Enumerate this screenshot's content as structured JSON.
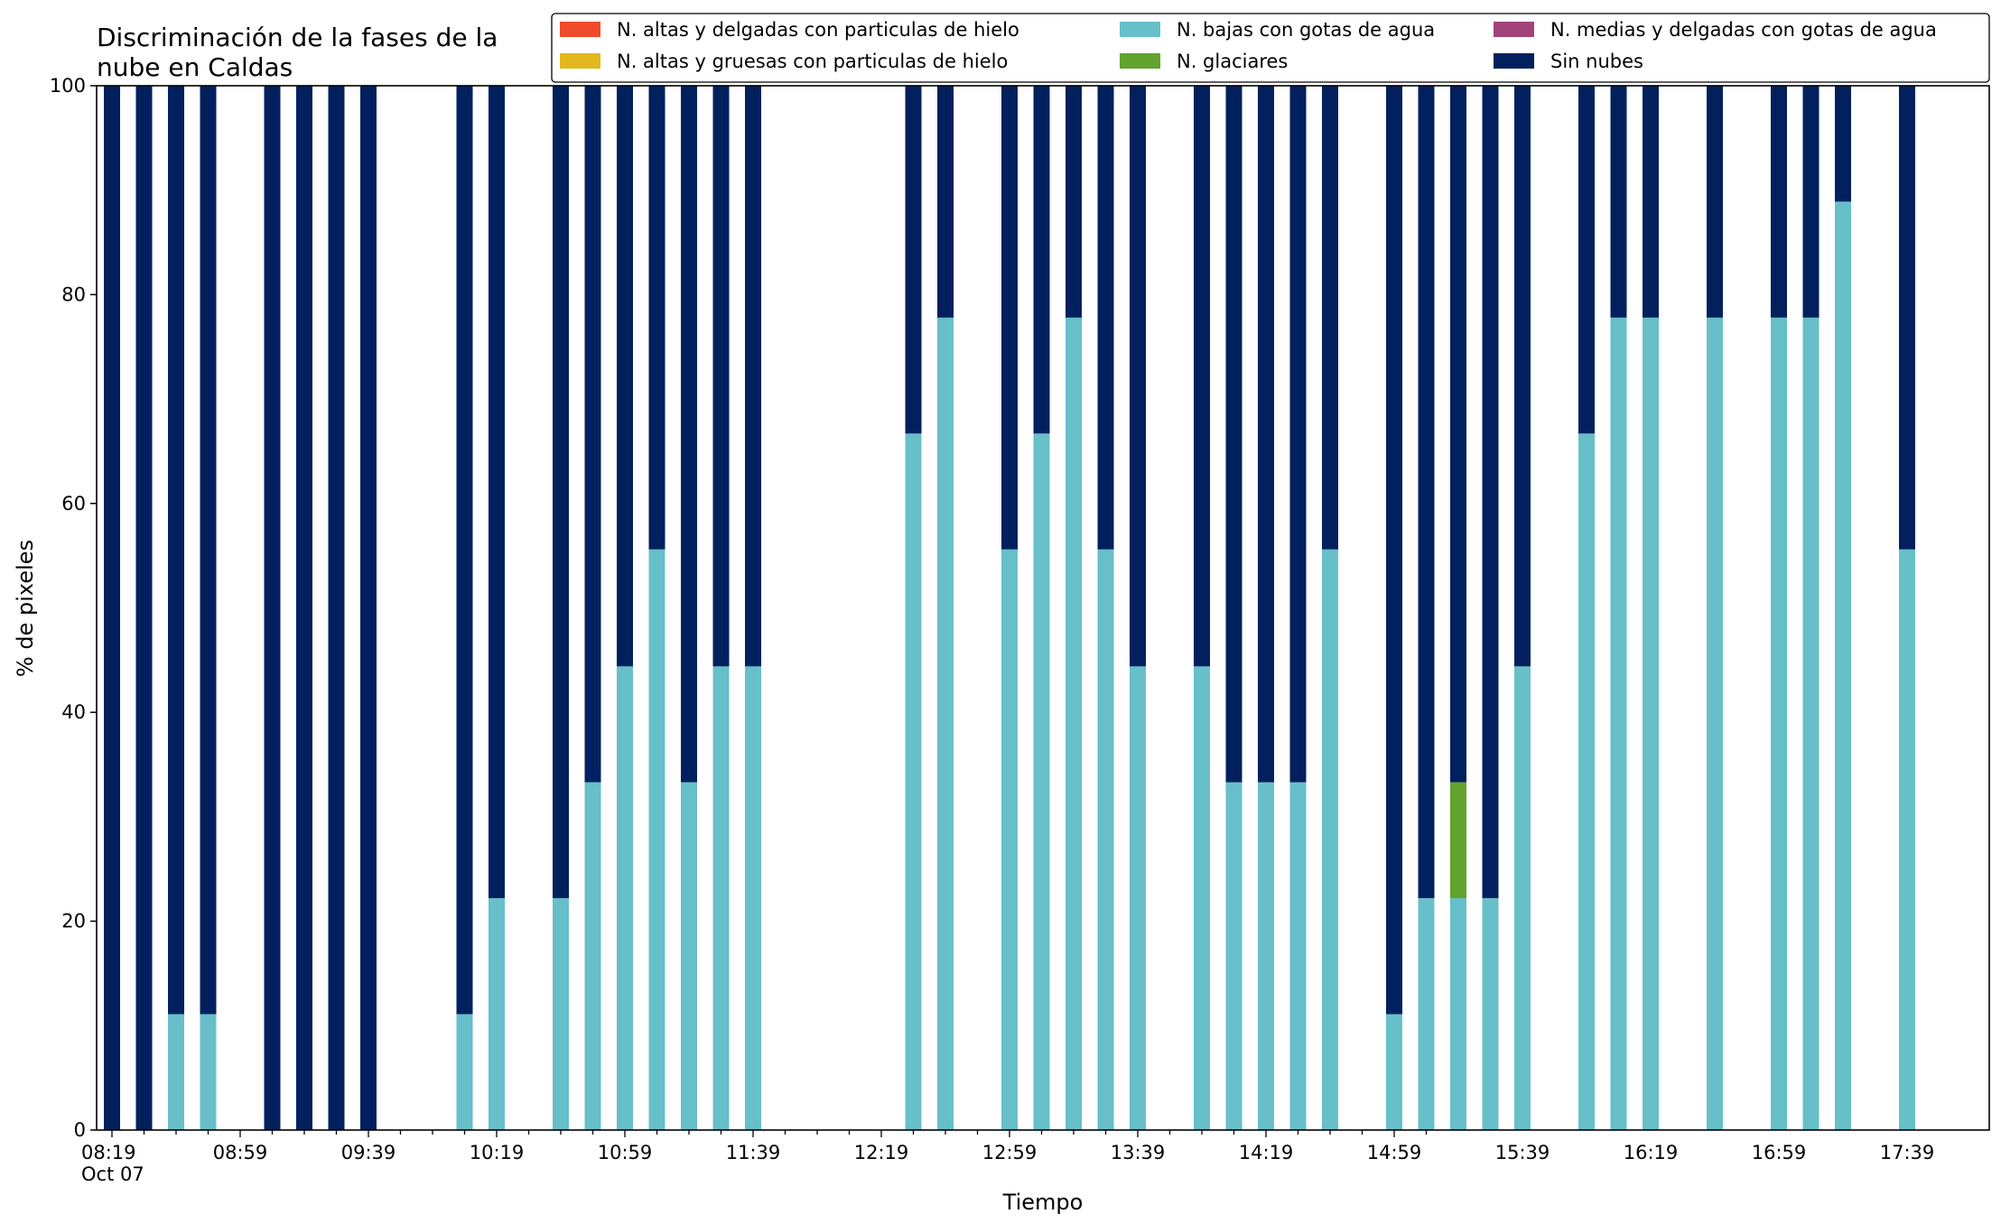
{
  "chart_data": {
    "type": "bar",
    "stacked": true,
    "title": "Discriminación de la fases de la nube en Caldas",
    "title_lines": [
      "Discriminación de la fases de la",
      "nube en Caldas"
    ],
    "xlabel": "Tiempo",
    "ylabel": "% de pixeles",
    "ylim": [
      0,
      100
    ],
    "yticks": [
      "0",
      "20",
      "40",
      "60",
      "80",
      "100"
    ],
    "xticks": [
      "08:19",
      "08:59",
      "09:39",
      "10:19",
      "10:59",
      "11:39",
      "12:19",
      "12:59",
      "13:39",
      "14:19",
      "14:59",
      "15:39",
      "16:19",
      "16:59",
      "17:39"
    ],
    "x_date_label": "Oct 07",
    "grid": false,
    "legend_position": "top-right",
    "categories": [
      "08:19",
      "08:29",
      "08:39",
      "08:49",
      "09:09",
      "09:19",
      "09:29",
      "09:39",
      "10:09",
      "10:19",
      "10:39",
      "10:49",
      "10:59",
      "11:09",
      "11:19",
      "11:29",
      "11:39",
      "12:29",
      "12:39",
      "12:59",
      "13:09",
      "13:19",
      "13:29",
      "13:39",
      "13:59",
      "14:09",
      "14:19",
      "14:29",
      "14:39",
      "14:59",
      "15:09",
      "15:19",
      "15:29",
      "15:39",
      "15:59",
      "16:09",
      "16:19",
      "16:39",
      "16:59",
      "17:09",
      "17:19",
      "17:39"
    ],
    "series": [
      {
        "name": "N. altas y delgadas con particulas de hielo",
        "color": "#ee4c2c",
        "values": [
          0,
          0,
          0,
          0,
          0,
          0,
          0,
          0,
          0,
          0,
          0,
          0,
          0,
          0,
          0,
          0,
          0,
          0,
          0,
          0,
          0,
          0,
          0,
          0,
          0,
          0,
          0,
          0,
          0,
          0,
          0,
          0,
          0,
          0,
          0,
          0,
          0,
          0,
          0,
          0,
          0,
          0
        ]
      },
      {
        "name": "N. altas y gruesas con particulas de hielo",
        "color": "#e3b71e",
        "values": [
          0,
          0,
          0,
          0,
          0,
          0,
          0,
          0,
          0,
          0,
          0,
          0,
          0,
          0,
          0,
          0,
          0,
          0,
          0,
          0,
          0,
          0,
          0,
          0,
          0,
          0,
          0,
          0,
          0,
          0,
          0,
          0,
          0,
          0,
          0,
          0,
          0,
          0,
          0,
          0,
          0,
          0
        ]
      },
      {
        "name": "N. bajas con gotas de agua",
        "color": "#67bfca",
        "values": [
          0,
          0,
          11.1,
          11.1,
          0,
          0,
          0,
          0,
          11.1,
          22.2,
          22.2,
          33.3,
          44.4,
          55.6,
          33.3,
          44.4,
          44.4,
          66.7,
          77.8,
          55.6,
          66.7,
          77.8,
          55.6,
          44.4,
          44.4,
          33.3,
          33.3,
          33.3,
          55.6,
          11.1,
          22.2,
          22.2,
          22.2,
          44.4,
          66.7,
          77.8,
          77.8,
          77.8,
          77.8,
          77.8,
          88.9,
          55.6
        ]
      },
      {
        "name": "N. glaciares",
        "color": "#62a22f",
        "values": [
          0,
          0,
          0,
          0,
          0,
          0,
          0,
          0,
          0,
          0,
          0,
          0,
          0,
          0,
          0,
          0,
          0,
          0,
          0,
          0,
          0,
          0,
          0,
          0,
          0,
          0,
          0,
          0,
          0,
          0,
          0,
          11.1,
          0,
          0,
          0,
          0,
          0,
          0,
          0,
          0,
          0,
          0
        ]
      },
      {
        "name": "N. medias y delgadas con gotas de agua",
        "color": "#a1437a",
        "values": [
          0,
          0,
          0,
          0,
          0,
          0,
          0,
          0,
          0,
          0,
          0,
          0,
          0,
          0,
          0,
          0,
          0,
          0,
          0,
          0,
          0,
          0,
          0,
          0,
          0,
          0,
          0,
          0,
          0,
          0,
          0,
          0,
          0,
          0,
          0,
          0,
          0,
          0,
          0,
          0,
          0,
          0
        ]
      },
      {
        "name": "Sin nubes",
        "color": "#03205e",
        "values": [
          100,
          100,
          88.9,
          88.9,
          100,
          100,
          100,
          100,
          88.9,
          77.8,
          77.8,
          66.7,
          55.6,
          44.4,
          66.7,
          55.6,
          55.6,
          33.3,
          22.2,
          44.4,
          33.3,
          22.2,
          44.4,
          55.6,
          55.6,
          66.7,
          66.7,
          66.7,
          44.4,
          88.9,
          77.8,
          66.7,
          77.8,
          55.6,
          33.3,
          22.2,
          22.2,
          22.2,
          22.2,
          22.2,
          11.1,
          44.4
        ]
      }
    ]
  }
}
